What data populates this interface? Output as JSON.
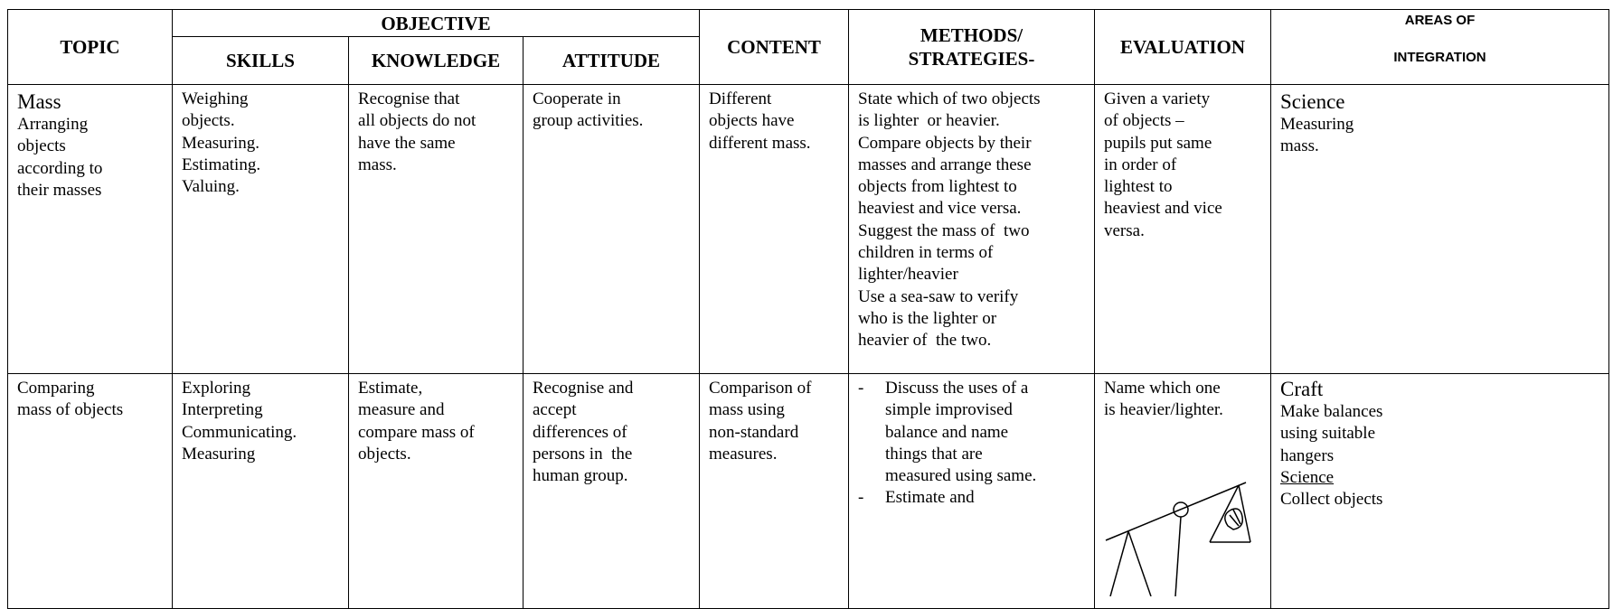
{
  "header": {
    "objective": "OBJECTIVE",
    "columns": [
      [
        "TOPIC"
      ],
      [
        "SKILLS"
      ],
      [
        "KNOWLEDGE"
      ],
      [
        "ATTITUDE"
      ],
      [
        "CONTENT"
      ],
      [
        "METHODS/",
        "STRATEGIES-"
      ],
      [
        "EVALUATION"
      ],
      [
        "AREAS OF",
        "INTEGRATION"
      ]
    ]
  },
  "rows": [
    [
      {
        "lines": [
          "Mass",
          "Arranging",
          "objects",
          "according to",
          "their masses"
        ]
      },
      {
        "lines": [
          "Weighing",
          "objects.",
          "Measuring.",
          "Estimating.",
          "Valuing."
        ]
      },
      {
        "lines": [
          "Recognise that",
          "all objects do not",
          "have the same",
          "mass."
        ]
      },
      {
        "lines": [
          "Cooperate in",
          "group activities."
        ]
      },
      {
        "lines": [
          "Different",
          "objects have",
          "different mass."
        ]
      },
      {
        "lines": [
          "State which of two objects",
          "is lighter  or heavier.",
          "Compare objects by their",
          "masses and arrange these",
          "objects from lightest to",
          "heaviest and vice versa.",
          "Suggest the mass of  two",
          "children in terms of",
          "lighter/heavier",
          "Use a sea-saw to verify",
          "who is the lighter or",
          "heavier of  the two."
        ]
      },
      {
        "lines": [
          "Given a variety",
          "of objects –",
          "pupils put same",
          "in order of",
          "lightest to",
          "heaviest and vice",
          "versa."
        ]
      },
      {
        "lines": [
          "Science",
          "Measuring",
          "mass."
        ]
      }
    ],
    [
      {
        "lines": [
          "Comparing",
          "mass of objects"
        ]
      },
      {
        "lines": [
          "Exploring",
          "Interpreting",
          "Communicating.",
          "Measuring"
        ]
      },
      {
        "lines": [
          "Estimate,",
          "measure and",
          "compare mass of",
          "objects."
        ]
      },
      {
        "lines": [
          "Recognise and",
          "accept",
          "differences of",
          "persons in  the",
          "human group."
        ]
      },
      {
        "lines": [
          "Comparison of",
          "mass using",
          "non-standard",
          "measures."
        ]
      },
      {
        "items": [
          {
            "marker": "-",
            "lines": [
              "Discuss the uses of a",
              "simple improvised",
              "balance and name",
              "things that are",
              "measured using same."
            ]
          },
          {
            "marker": "-",
            "lines": [
              "Estimate and"
            ]
          }
        ]
      },
      {
        "lines": [
          "Name which one",
          "is heavier/lighter."
        ]
      },
      {
        "lines": [
          "Craft",
          "Make balances",
          "using suitable",
          "hangers",
          "Science",
          "Collect objects"
        ]
      }
    ]
  ]
}
